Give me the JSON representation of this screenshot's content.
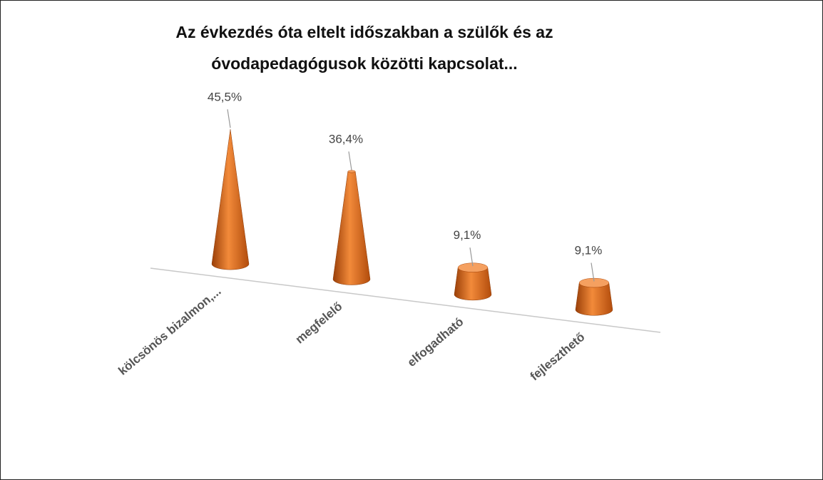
{
  "chart_data": {
    "type": "cone",
    "title": "Az évkezdés óta eltelt időszakban a szülők és az óvodapedagógusok közötti kapcsolat...",
    "categories": [
      "kölcsönös bizalmon,...",
      "megfelelő",
      "elfogadható",
      "fejleszthető"
    ],
    "values": [
      45.5,
      36.4,
      9.1,
      9.1
    ],
    "value_labels": [
      "45,5%",
      "36,4%",
      "9,1%",
      "9,1%"
    ],
    "color": "#e0701e"
  }
}
